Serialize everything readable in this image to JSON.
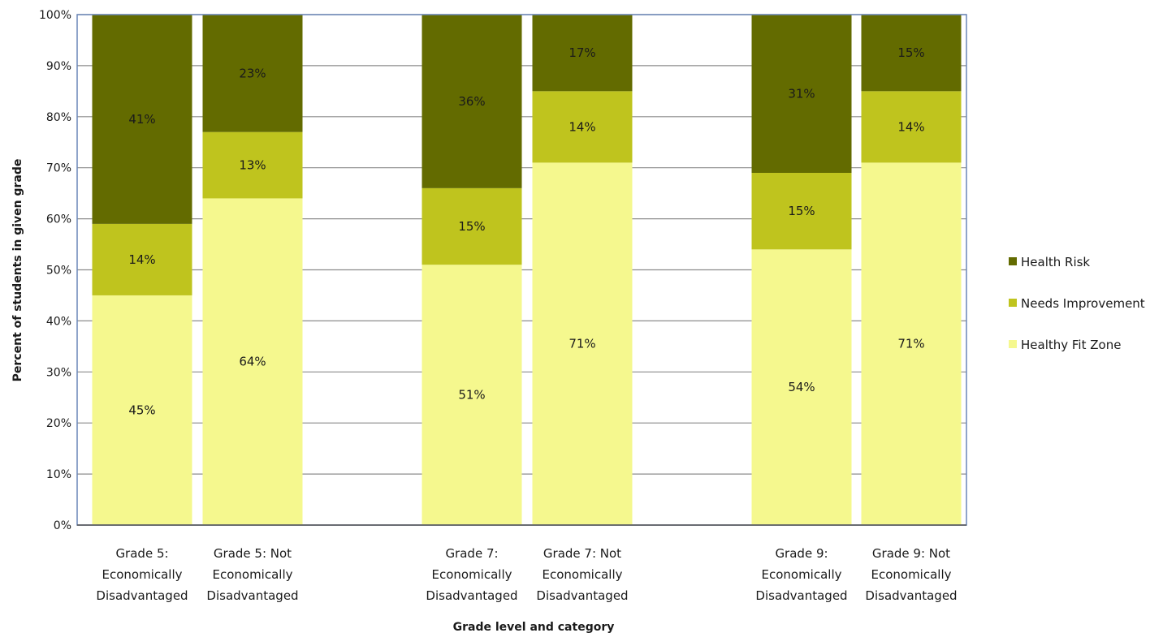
{
  "chart_data": {
    "type": "bar",
    "stacked": true,
    "categories": [
      "Grade 5: Economically Disadvantaged",
      "Grade 5: Not Economically Disadvantaged",
      "Grade 7: Economically Disadvantaged",
      "Grade 7: Not Economically Disadvantaged",
      "Grade 9: Economically Disadvantaged",
      "Grade 9: Not Economically Disadvantaged"
    ],
    "category_lines": [
      [
        "Grade 5:",
        "Economically",
        "Disadvantaged"
      ],
      [
        "Grade 5: Not",
        "Economically",
        "Disadvantaged"
      ],
      [
        "Grade 7:",
        "Economically",
        "Disadvantaged"
      ],
      [
        "Grade 7: Not",
        "Economically",
        "Disadvantaged"
      ],
      [
        "Grade 9:",
        "Economically",
        "Disadvantaged"
      ],
      [
        "Grade 9: Not",
        "Economically",
        "Disadvantaged"
      ]
    ],
    "series": [
      {
        "name": "Healthy Fit Zone",
        "color": "#f5f88e",
        "values": [
          45,
          64,
          51,
          71,
          54,
          71
        ]
      },
      {
        "name": "Needs Improvement",
        "color": "#bfc41e",
        "values": [
          14,
          13,
          15,
          14,
          15,
          14
        ]
      },
      {
        "name": "Health Risk",
        "color": "#636b00",
        "values": [
          41,
          23,
          36,
          17,
          31,
          15
        ]
      }
    ],
    "legend_order": [
      "Health Risk",
      "Needs Improvement",
      "Healthy Fit Zone"
    ],
    "title": "",
    "xlabel": "Grade level and category",
    "ylabel": "Percent of students in given grade",
    "ylim": [
      0,
      100
    ],
    "yticks": [
      "0%",
      "10%",
      "20%",
      "30%",
      "40%",
      "50%",
      "60%",
      "70%",
      "80%",
      "90%",
      "100%"
    ],
    "grid": true,
    "legend_position": "right"
  }
}
